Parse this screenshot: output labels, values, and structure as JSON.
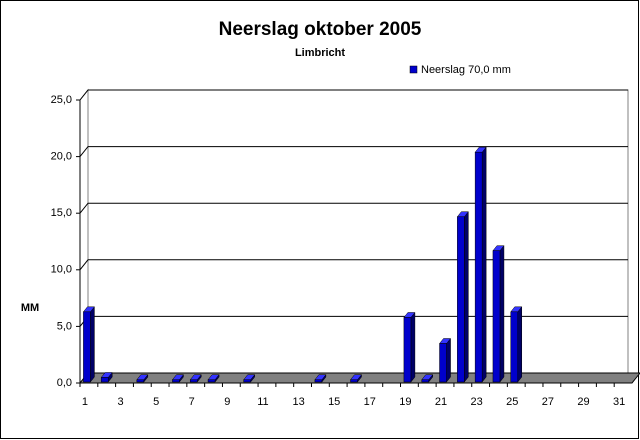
{
  "chart_data": {
    "type": "bar3d",
    "title": "Neerslag oktober 2005",
    "subtitle": "Limbricht",
    "y_label": "MM",
    "categories": [
      "1",
      null,
      "3",
      null,
      "5",
      null,
      "7",
      null,
      "9",
      null,
      "11",
      null,
      "13",
      null,
      "15",
      null,
      "17",
      null,
      "19",
      null,
      "21",
      null,
      "23",
      null,
      "25",
      null,
      "27",
      null,
      "29",
      null,
      "31"
    ],
    "series": [
      {
        "name": "Neerslag 70,0 mm",
        "color": "#0000cc",
        "values": [
          6.2,
          0.4,
          0,
          0.2,
          0,
          0.2,
          0.2,
          0.2,
          0,
          0.2,
          0,
          0,
          0,
          0.2,
          0,
          0.2,
          0,
          0,
          5.7,
          0.2,
          3.4,
          14.6,
          20.3,
          11.6,
          6.2,
          0,
          0,
          0,
          0,
          0,
          0
        ]
      }
    ],
    "ylim": [
      0,
      25
    ],
    "yticks": [
      {
        "value": 0,
        "label": "0,0"
      },
      {
        "value": 5,
        "label": "5,0"
      },
      {
        "value": 10,
        "label": "10,0"
      },
      {
        "value": 15,
        "label": "15,0"
      },
      {
        "value": 20,
        "label": "20,0"
      },
      {
        "value": 25,
        "label": "25,0"
      }
    ],
    "grid": true,
    "legend": "top-right"
  }
}
